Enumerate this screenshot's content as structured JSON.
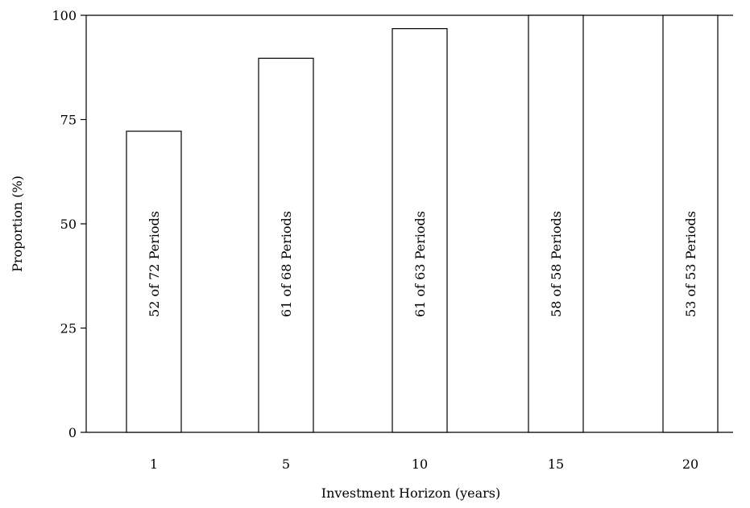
{
  "chart_data": {
    "type": "bar",
    "categories": [
      "1",
      "5",
      "10",
      "15",
      "20"
    ],
    "values": [
      72.2,
      89.7,
      96.8,
      100,
      100
    ],
    "bar_labels": [
      "52 of 72 Periods",
      "61 of 68 Periods",
      "61 of 63 Periods",
      "58 of 58 Periods",
      "53 of 53 Periods"
    ],
    "title": "",
    "xlabel": "Investment Horizon (years)",
    "ylabel": "Proportion (%)",
    "ylim": [
      0,
      100
    ],
    "yticks": [
      0,
      25,
      50,
      75,
      100
    ],
    "grid": false,
    "colors": {
      "bar_fill": "#ffffff",
      "bar_stroke": "#000000"
    }
  }
}
